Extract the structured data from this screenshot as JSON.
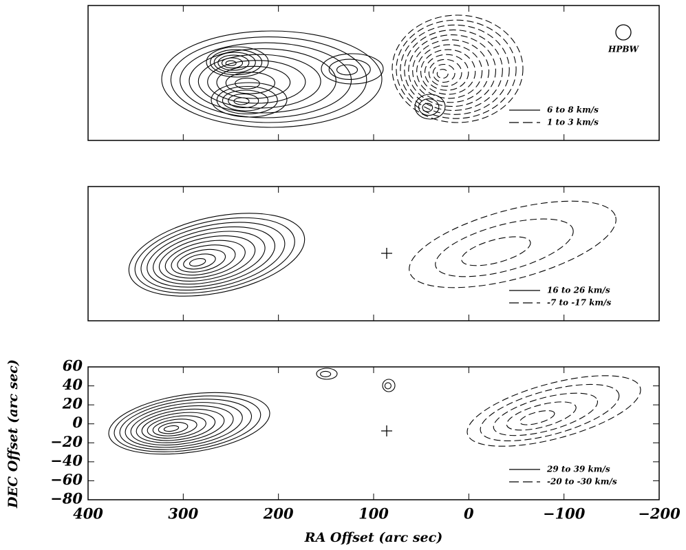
{
  "chart_data": [
    {
      "type": "contour",
      "annotation": "HPBW",
      "series": [
        {
          "name": "6 to 8 km/s",
          "color": "#000000",
          "dash": "solid"
        },
        {
          "name": "1 to 3 km/s",
          "color": "#000000",
          "dash": "dashed"
        }
      ]
    },
    {
      "type": "contour",
      "series": [
        {
          "name": "16 to 26 km/s",
          "color": "#000000",
          "dash": "solid"
        },
        {
          "name": "-7 to -17 km/s",
          "color": "#000000",
          "dash": "dashed"
        }
      ]
    },
    {
      "type": "contour",
      "xlabel": "RA Offset (arc sec)",
      "ylabel": "DEC Offset (arc sec)",
      "xlim": [
        400,
        -200
      ],
      "ylim": [
        -80,
        60
      ],
      "xticks": [
        400,
        300,
        200,
        100,
        0,
        {
          "value": -100,
          "label": "−100"
        },
        {
          "value": -200,
          "label": "−200"
        }
      ],
      "yticks": [
        {
          "value": -80,
          "label": "−80"
        },
        {
          "value": -60,
          "label": "−60"
        },
        {
          "value": -40,
          "label": "−40"
        },
        {
          "value": -20,
          "label": "−20"
        },
        0,
        20,
        40,
        60
      ],
      "series": [
        {
          "name": "29 to 39 km/s",
          "color": "#000000",
          "dash": "solid"
        },
        {
          "name": "-20 to -30 km/s",
          "color": "#000000",
          "dash": "dashed"
        }
      ]
    }
  ]
}
